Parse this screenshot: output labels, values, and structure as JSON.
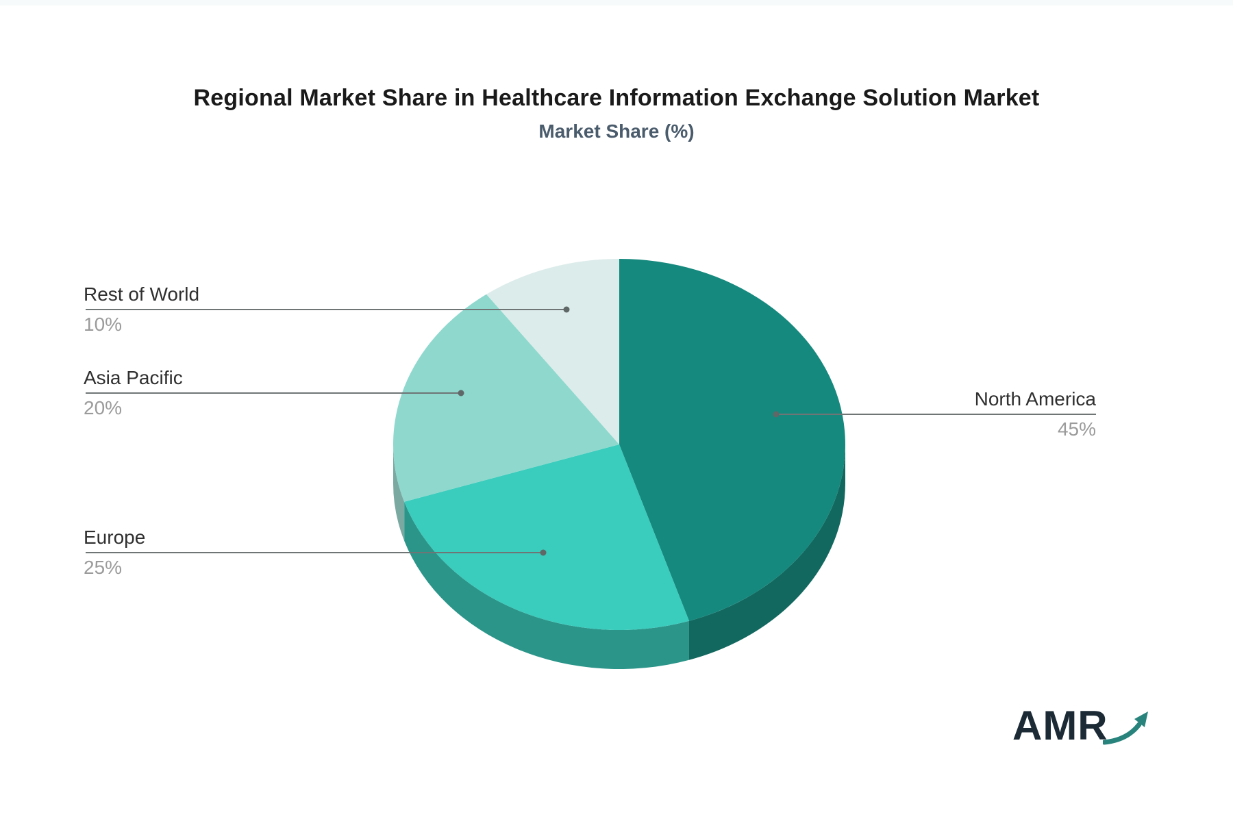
{
  "header": {
    "title": "Regional Market Share in Healthcare Information Exchange Solution Market",
    "subtitle": "Market Share (%)"
  },
  "chart_data": {
    "type": "pie",
    "style": "3d",
    "title": "Regional Market Share in Healthcare Information Exchange Solution Market",
    "subtitle": "Market Share (%)",
    "unit": "%",
    "start_angle_deg": -90,
    "direction": "clockwise",
    "legend_position": "callout-labels",
    "categories": [
      "North America",
      "Europe",
      "Asia Pacific",
      "Rest of World"
    ],
    "values": [
      45,
      25,
      20,
      10
    ],
    "slices": [
      {
        "label": "North America",
        "value": 45,
        "pct_label": "45%",
        "color": "#16897e",
        "side_color": "#12685f"
      },
      {
        "label": "Europe",
        "value": 25,
        "pct_label": "25%",
        "color": "#3accbc",
        "side_color": "#2b958a"
      },
      {
        "label": "Asia Pacific",
        "value": 20,
        "pct_label": "20%",
        "color": "#8ed8ce",
        "side_color": "#7aa9a1"
      },
      {
        "label": "Rest of World",
        "value": 10,
        "pct_label": "10%",
        "color": "#dcecea",
        "side_color": "#b9cfcb"
      }
    ],
    "leader_line_color": "#6f7575",
    "leader_dot_color": "#5f6767"
  },
  "branding": {
    "logo_text": "AMR",
    "logo_text_color": "#1b2a35",
    "logo_arrow_color": "#27837c"
  }
}
